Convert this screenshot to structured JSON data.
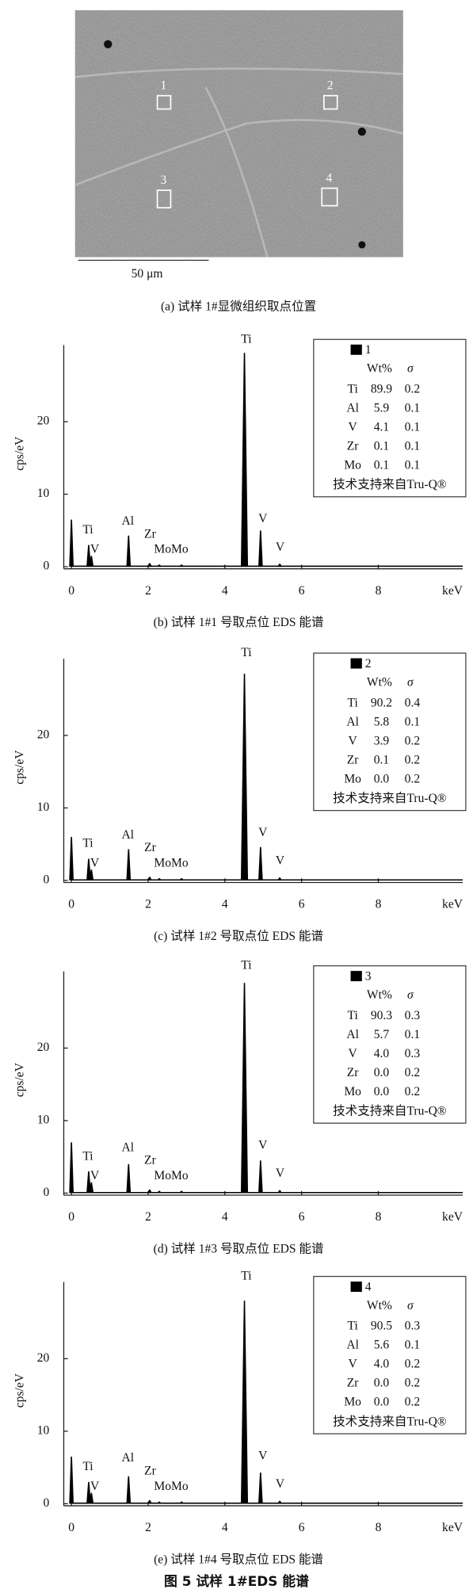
{
  "micrograph": {
    "points": [
      "1",
      "2",
      "3",
      "4"
    ],
    "scale_bar": "50 μm",
    "caption": "(a)  试样 1#显微组织取点位置"
  },
  "chart_data": [
    {
      "type": "spectrum",
      "caption": "(b)  试样 1#1 号取点位 EDS 能谱",
      "ylabel": "cps/eV",
      "xlabel": "keV",
      "x": [
        0.0,
        0.45,
        0.52,
        1.49,
        2.04,
        2.29,
        2.87,
        4.51,
        4.93,
        5.43
      ],
      "values": [
        6.5,
        3.0,
        1.5,
        4.3,
        0.5,
        0.3,
        0.3,
        29.5,
        5.0,
        0.4
      ],
      "xlim": [
        -0.2,
        10.2
      ],
      "ylim": [
        0,
        30
      ],
      "xticks": [
        0,
        2,
        4,
        6,
        8
      ],
      "yticks": [
        0,
        10,
        20
      ],
      "annotations": [
        {
          "text": "Ti",
          "x": 0.43,
          "y": 5.0
        },
        {
          "text": "V",
          "x": 0.61,
          "y": 2.3
        },
        {
          "text": "Al",
          "x": 1.47,
          "y": 6.2
        },
        {
          "text": "Zr",
          "x": 2.05,
          "y": 4.4
        },
        {
          "text": "MoMo",
          "x": 2.6,
          "y": 2.3
        },
        {
          "text": "Ti",
          "x": 4.56,
          "y": 31.3
        },
        {
          "text": "V",
          "x": 4.99,
          "y": 6.5
        },
        {
          "text": "V",
          "x": 5.44,
          "y": 2.6
        }
      ],
      "inset": {
        "label": "1",
        "columns": [
          "Wt%",
          "σ"
        ],
        "rows": [
          [
            "Ti",
            "89.9",
            "0.2"
          ],
          [
            "Al",
            "5.9",
            "0.1"
          ],
          [
            "V",
            "4.1",
            "0.1"
          ],
          [
            "Zr",
            "0.1",
            "0.1"
          ],
          [
            "Mo",
            "0.1",
            "0.1"
          ]
        ],
        "footer": "技术支持来自Tru-Q®"
      }
    },
    {
      "type": "spectrum",
      "caption": "(c)  试样 1#2 号取点位 EDS 能谱",
      "ylabel": "cps/eV",
      "xlabel": "keV",
      "x": [
        0.0,
        0.45,
        0.52,
        1.49,
        2.04,
        2.29,
        2.87,
        4.51,
        4.93,
        5.43
      ],
      "values": [
        6.0,
        3.0,
        1.5,
        4.3,
        0.5,
        0.3,
        0.3,
        28.5,
        4.6,
        0.4
      ],
      "xlim": [
        -0.2,
        10.2
      ],
      "ylim": [
        0,
        30
      ],
      "xticks": [
        0,
        2,
        4,
        6,
        8
      ],
      "yticks": [
        0,
        10,
        20
      ],
      "annotations": [
        {
          "text": "Ti",
          "x": 0.43,
          "y": 5.0
        },
        {
          "text": "V",
          "x": 0.61,
          "y": 2.3
        },
        {
          "text": "Al",
          "x": 1.47,
          "y": 6.2
        },
        {
          "text": "Zr",
          "x": 2.05,
          "y": 4.4
        },
        {
          "text": "MoMo",
          "x": 2.6,
          "y": 2.3
        },
        {
          "text": "Ti",
          "x": 4.56,
          "y": 31.3
        },
        {
          "text": "V",
          "x": 4.99,
          "y": 6.5
        },
        {
          "text": "V",
          "x": 5.44,
          "y": 2.6
        }
      ],
      "inset": {
        "label": "2",
        "columns": [
          "Wt%",
          "σ"
        ],
        "rows": [
          [
            "Ti",
            "90.2",
            "0.4"
          ],
          [
            "Al",
            "5.8",
            "0.1"
          ],
          [
            "V",
            "3.9",
            "0.2"
          ],
          [
            "Zr",
            "0.1",
            "0.2"
          ],
          [
            "Mo",
            "0.0",
            "0.2"
          ]
        ],
        "footer": "技术支持来自Tru-Q®"
      }
    },
    {
      "type": "spectrum",
      "caption": "(d)  试样 1#3 号取点位 EDS 能谱",
      "ylabel": "cps/eV",
      "xlabel": "keV",
      "x": [
        0.0,
        0.45,
        0.52,
        1.49,
        2.04,
        2.29,
        2.87,
        4.51,
        4.93,
        5.43
      ],
      "values": [
        7.0,
        3.0,
        1.5,
        4.0,
        0.5,
        0.3,
        0.3,
        29.0,
        4.5,
        0.4
      ],
      "xlim": [
        -0.2,
        10.2
      ],
      "ylim": [
        0,
        30
      ],
      "xticks": [
        0,
        2,
        4,
        6,
        8
      ],
      "yticks": [
        0,
        10,
        20
      ],
      "annotations": [
        {
          "text": "Ti",
          "x": 0.43,
          "y": 5.0
        },
        {
          "text": "V",
          "x": 0.61,
          "y": 2.3
        },
        {
          "text": "Al",
          "x": 1.47,
          "y": 6.2
        },
        {
          "text": "Zr",
          "x": 2.05,
          "y": 4.4
        },
        {
          "text": "MoMo",
          "x": 2.6,
          "y": 2.3
        },
        {
          "text": "Ti",
          "x": 4.56,
          "y": 31.3
        },
        {
          "text": "V",
          "x": 4.99,
          "y": 6.5
        },
        {
          "text": "V",
          "x": 5.44,
          "y": 2.6
        }
      ],
      "inset": {
        "label": "3",
        "columns": [
          "Wt%",
          "σ"
        ],
        "rows": [
          [
            "Ti",
            "90.3",
            "0.3"
          ],
          [
            "Al",
            "5.7",
            "0.1"
          ],
          [
            "V",
            "4.0",
            "0.3"
          ],
          [
            "Zr",
            "0.0",
            "0.2"
          ],
          [
            "Mo",
            "0.0",
            "0.2"
          ]
        ],
        "footer": "技术支持来自Tru-Q®"
      }
    },
    {
      "type": "spectrum",
      "caption": "(e)  试样 1#4 号取点位 EDS 能谱",
      "ylabel": "cps/eV",
      "xlabel": "keV",
      "x": [
        0.0,
        0.45,
        0.52,
        1.49,
        2.04,
        2.29,
        2.87,
        4.51,
        4.93,
        5.43
      ],
      "values": [
        6.5,
        3.0,
        1.5,
        3.8,
        0.5,
        0.3,
        0.3,
        28.0,
        4.3,
        0.4
      ],
      "xlim": [
        -0.2,
        10.2
      ],
      "ylim": [
        0,
        30
      ],
      "xticks": [
        0,
        2,
        4,
        6,
        8
      ],
      "yticks": [
        0,
        10,
        20
      ],
      "annotations": [
        {
          "text": "Ti",
          "x": 0.43,
          "y": 5.0
        },
        {
          "text": "V",
          "x": 0.61,
          "y": 2.3
        },
        {
          "text": "Al",
          "x": 1.47,
          "y": 6.2
        },
        {
          "text": "Zr",
          "x": 2.05,
          "y": 4.4
        },
        {
          "text": "MoMo",
          "x": 2.6,
          "y": 2.3
        },
        {
          "text": "Ti",
          "x": 4.56,
          "y": 31.3
        },
        {
          "text": "V",
          "x": 4.99,
          "y": 6.5
        },
        {
          "text": "V",
          "x": 5.44,
          "y": 2.6
        }
      ],
      "inset": {
        "label": "4",
        "columns": [
          "Wt%",
          "σ"
        ],
        "rows": [
          [
            "Ti",
            "90.5",
            "0.3"
          ],
          [
            "Al",
            "5.6",
            "0.1"
          ],
          [
            "V",
            "4.0",
            "0.2"
          ],
          [
            "Zr",
            "0.0",
            "0.2"
          ],
          [
            "Mo",
            "0.0",
            "0.2"
          ]
        ],
        "footer": "技术支持来自Tru-Q®"
      }
    }
  ],
  "figure_caption": "图 5  试样 1#EDS 能谱"
}
